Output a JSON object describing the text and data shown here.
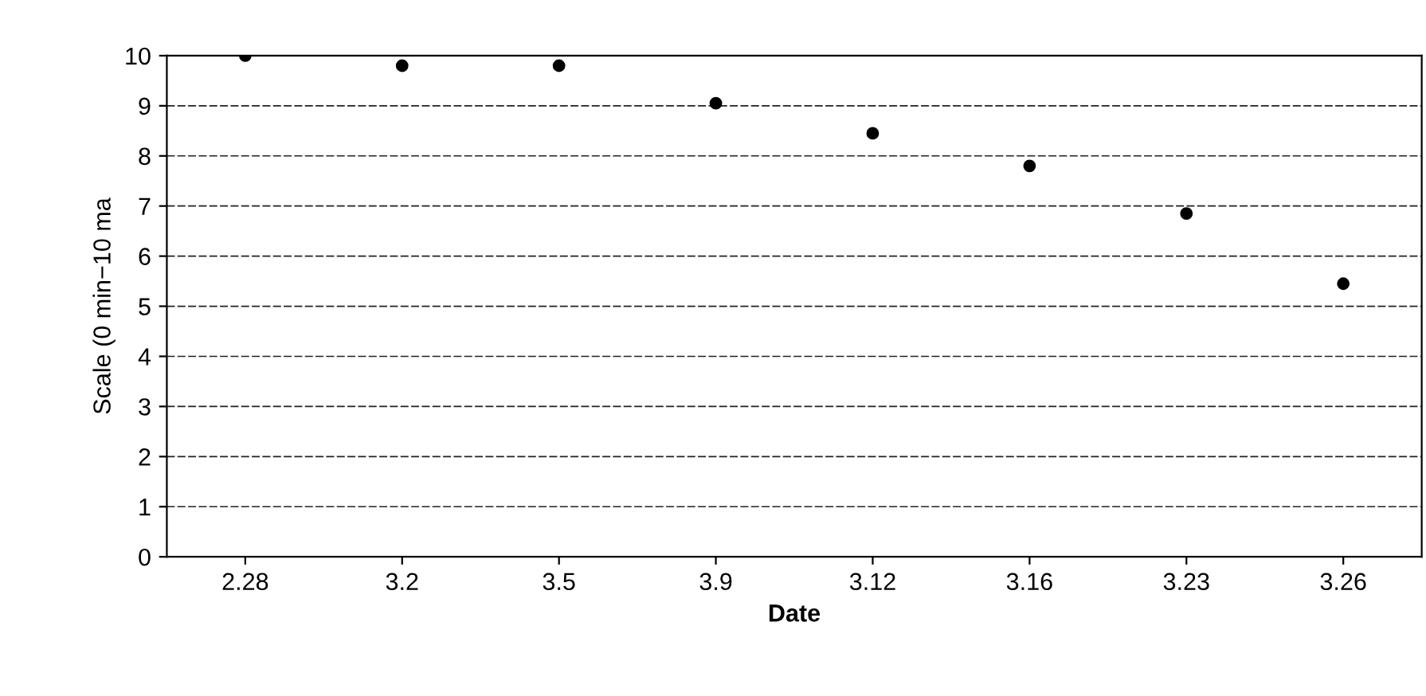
{
  "chart_data": {
    "type": "scatter",
    "xlabel": "Date",
    "ylabel": "Scale (0 min−10 ma",
    "categories": [
      "2.28",
      "3.2",
      "3.5",
      "3.9",
      "3.12",
      "3.16",
      "3.23",
      "3.26"
    ],
    "series": [
      {
        "color": "#000000",
        "values": [
          10,
          9.8,
          9.8,
          9.05,
          8.45,
          7.8,
          6.85,
          5.45
        ]
      }
    ],
    "ylim": [
      0,
      10
    ],
    "yticks": [
      0,
      1,
      2,
      3,
      4,
      5,
      6,
      7,
      8,
      9,
      10
    ],
    "grid": "y",
    "marker": "circle",
    "legend": false
  }
}
